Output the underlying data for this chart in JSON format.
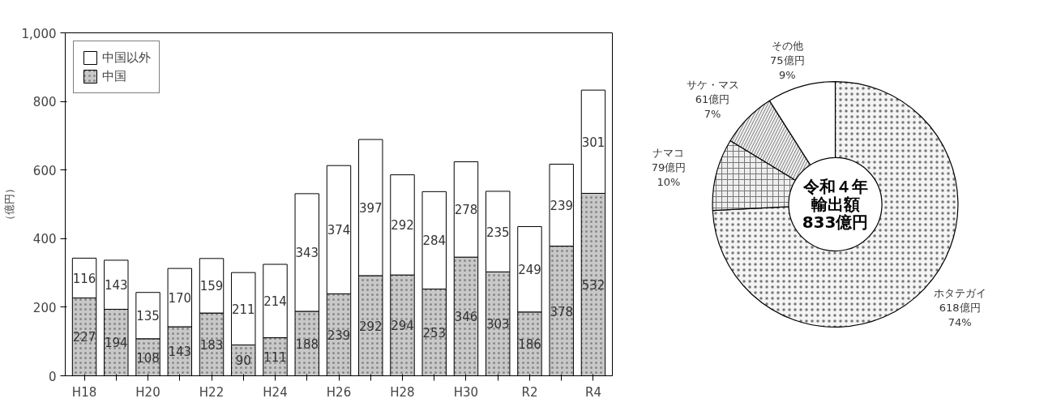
{
  "chart_data": [
    {
      "type": "bar",
      "ylabel": "（億円）",
      "categories": [
        "H18",
        null,
        "H20",
        null,
        "H22",
        null,
        "H24",
        null,
        "H26",
        null,
        "H28",
        null,
        "H30",
        null,
        "R2",
        null,
        "R4"
      ],
      "stacked": true,
      "ylim": [
        0,
        1000
      ],
      "yticks": [
        0,
        200,
        400,
        600,
        800,
        {
          "value": 1000,
          "label": "1,000"
        }
      ],
      "legend": "top left",
      "data_labels": true,
      "series": [
        {
          "name": "中国",
          "color": "#c8c8c8",
          "values": [
            227,
            194,
            108,
            143,
            183,
            90,
            111,
            188,
            239,
            292,
            294,
            253,
            346,
            303,
            186,
            378,
            532
          ]
        },
        {
          "name": "中国以外",
          "color": "#ffffff",
          "values": [
            116,
            143,
            135,
            170,
            159,
            211,
            214,
            343,
            374,
            397,
            292,
            284,
            278,
            235,
            249,
            239,
            301
          ]
        }
      ]
    },
    {
      "type": "donut",
      "categories": [
        "ホタテガイ",
        "ナマコ",
        "サケ・マス",
        "その他"
      ],
      "values": [
        618,
        79,
        61,
        75
      ],
      "colors": [
        "#f4f4f4",
        "#eeeeee",
        "#f2f2f2",
        "#ffffff"
      ],
      "value_labels": [
        "618億円\n74%",
        "79億円\n10%",
        "61億円\n7%",
        "75億円\n9%"
      ],
      "annotations": [
        "令和４年",
        "輸出額",
        "833億円"
      ]
    }
  ]
}
